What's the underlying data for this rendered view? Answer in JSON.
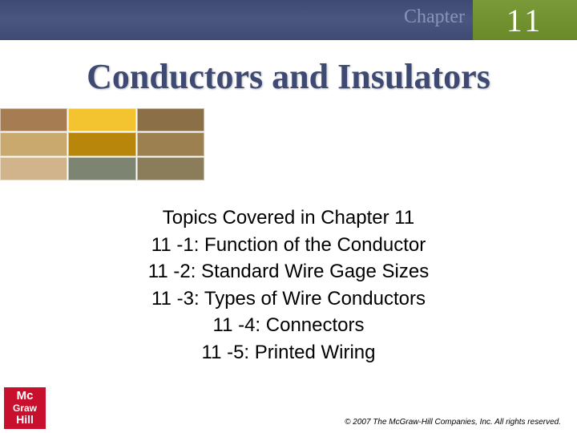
{
  "header": {
    "chapter_label": "Chapter",
    "chapter_number": "11",
    "bar_color": "#3e4a73",
    "box_color": "#7a9a3a"
  },
  "title": {
    "text": "Conductors and Insulators",
    "color": "#3e4a73",
    "fontsize": 44
  },
  "grid": {
    "rows": 3,
    "cols": 3,
    "cell_colors": [
      "#a67c52",
      "#f4c430",
      "#8b6f47",
      "#c9a96e",
      "#b8860b",
      "#9c8050",
      "#d2b48c",
      "#7d8471",
      "#8b7d5a"
    ]
  },
  "topics": {
    "heading": "Topics Covered in Chapter 11",
    "items": [
      "11 -1: Function of the Conductor",
      "11 -2: Standard Wire Gage Sizes",
      "11 -3: Types of Wire Conductors",
      "11 -4: Connectors",
      "11 -5: Printed Wiring"
    ],
    "fontsize": 24
  },
  "copyright": "© 2007 The McGraw-Hill Companies, Inc. All rights reserved.",
  "logo": {
    "line1": "Mc",
    "line2": "Graw",
    "line3": "Hill",
    "bg_color": "#c8102e"
  }
}
